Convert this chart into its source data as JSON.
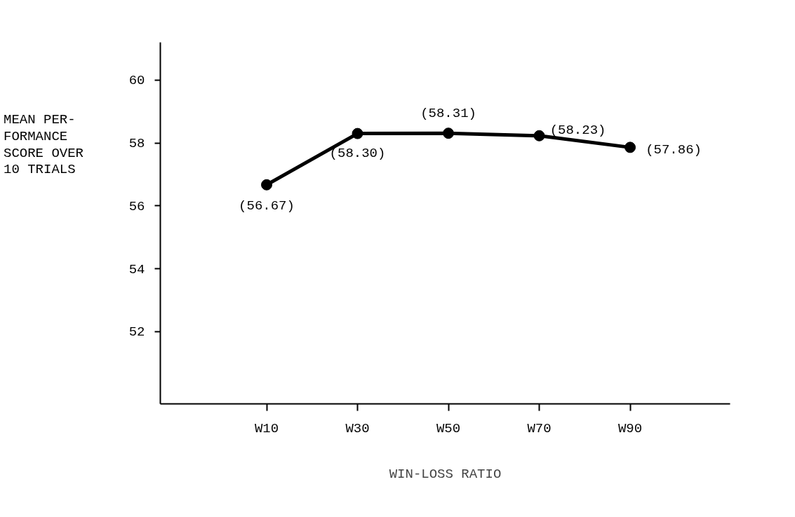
{
  "chart_data": {
    "type": "line",
    "xlabel": "WIN-LOSS RATIO",
    "ylabel": "MEAN PER-\nFORMANCE\nSCORE OVER\n10 TRIALS",
    "categories": [
      "W10",
      "W30",
      "W50",
      "W70",
      "W90"
    ],
    "series": [
      {
        "color": "#000000",
        "values": [
          56.67,
          58.3,
          58.31,
          58.23,
          57.86
        ]
      }
    ],
    "ylim": [
      49.7,
      61.2
    ],
    "yticks": [
      52,
      54,
      56,
      58,
      60
    ],
    "value_labels": [
      "(56.67)",
      "(58.30)",
      "(58.31)",
      "(58.23)",
      "(57.86)"
    ],
    "marker": "circle",
    "line_style": "solid",
    "grid": false
  }
}
